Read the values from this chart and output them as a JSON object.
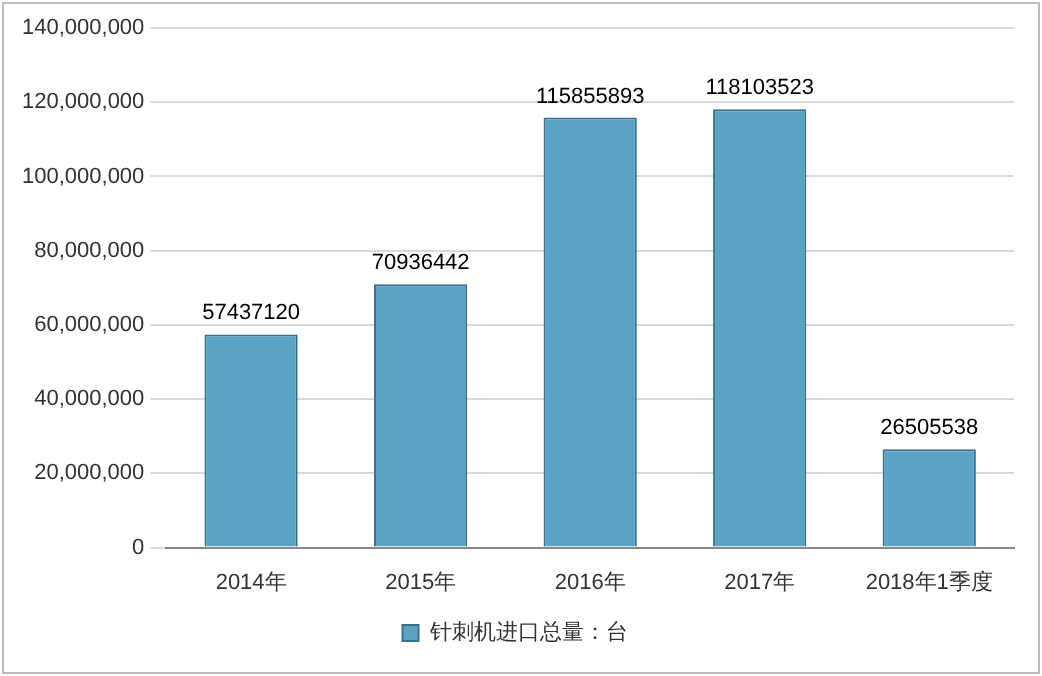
{
  "chart_data": {
    "type": "bar",
    "categories": [
      "2014年",
      "2015年",
      "2016年",
      "2017年",
      "2018年1季度"
    ],
    "series": [
      {
        "name": "针刺机进口总量：台",
        "color": "#5ba3c6",
        "values": [
          57437120,
          70936442,
          115855893,
          118103523,
          26505538
        ]
      }
    ],
    "ylim": [
      0,
      140000000
    ],
    "yticks": [
      {
        "value": 0,
        "label": "0"
      },
      {
        "value": 20000000,
        "label": "20,000,000"
      },
      {
        "value": 40000000,
        "label": "40,000,000"
      },
      {
        "value": 60000000,
        "label": "60,000,000"
      },
      {
        "value": 80000000,
        "label": "80,000,000"
      },
      {
        "value": 100000000,
        "label": "100,000,000"
      },
      {
        "value": 120000000,
        "label": "120,000,000"
      },
      {
        "value": 140000000,
        "label": "140,000,000"
      }
    ],
    "grid": "y",
    "legend": "bottom",
    "data_labels": true
  }
}
